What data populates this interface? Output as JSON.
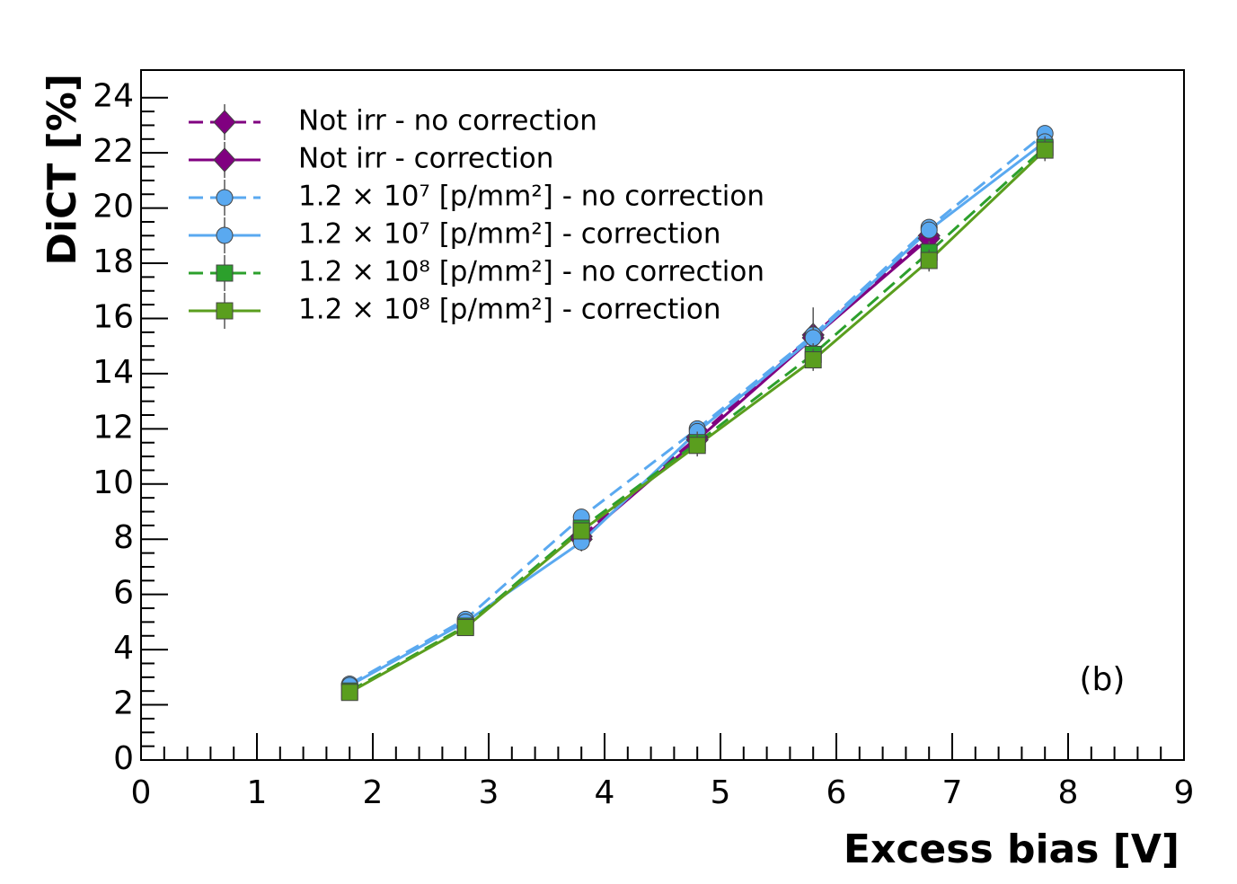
{
  "chart_data": {
    "type": "line",
    "xlabel": "Excess bias [V]",
    "ylabel": "DiCT [%]",
    "annotation": "(b)",
    "xlim": [
      0,
      9
    ],
    "ylim": [
      0,
      25
    ],
    "xticks": [
      0,
      1,
      2,
      3,
      4,
      5,
      6,
      7,
      8,
      9
    ],
    "yticks": [
      0,
      2,
      4,
      6,
      8,
      10,
      12,
      14,
      16,
      18,
      20,
      22,
      24
    ],
    "legend": "upper left",
    "series": [
      {
        "name": "Not irr - no correction",
        "color": "#800080",
        "marker": "diamond",
        "dash": true,
        "x": [
          3.8,
          4.8,
          5.8,
          6.8
        ],
        "values": [
          8.1,
          11.7,
          15.4,
          19.0
        ],
        "errors": [
          0.4,
          0.5,
          1.0,
          0.4
        ]
      },
      {
        "name": "Not irr - correction",
        "color": "#800080",
        "marker": "diamond",
        "dash": false,
        "x": [
          3.8,
          4.8,
          5.8,
          6.8
        ],
        "values": [
          8.0,
          11.6,
          15.3,
          18.9
        ],
        "errors": [
          0.4,
          0.5,
          0.5,
          0.4
        ]
      },
      {
        "name": "1.2 × 10⁷ [p/mm²] - no correction",
        "color": "#5aa9f0",
        "marker": "circle",
        "dash": true,
        "x": [
          1.8,
          2.8,
          3.8,
          4.8,
          5.8,
          6.8,
          7.8
        ],
        "values": [
          2.75,
          5.1,
          8.8,
          12.0,
          15.4,
          19.3,
          22.7
        ],
        "errors": [
          0.2,
          0.2,
          0.3,
          0.3,
          0.4,
          0.3,
          0.3
        ]
      },
      {
        "name": "1.2 × 10⁷ [p/mm²] - correction",
        "color": "#5aa9f0",
        "marker": "circle",
        "dash": false,
        "x": [
          1.8,
          2.8,
          3.8,
          4.8,
          5.8,
          6.8,
          7.8
        ],
        "values": [
          2.7,
          5.0,
          7.9,
          11.9,
          15.3,
          19.2,
          22.4
        ],
        "errors": [
          0.2,
          0.2,
          0.3,
          0.3,
          0.4,
          0.3,
          0.3
        ]
      },
      {
        "name": "1.2 × 10⁸ [p/mm²] - no correction",
        "color": "#2ca02c",
        "marker": "square",
        "dash": true,
        "x": [
          1.8,
          2.8,
          3.8,
          4.8,
          5.8,
          6.8,
          7.8
        ],
        "values": [
          2.5,
          4.85,
          8.4,
          11.5,
          14.7,
          18.4,
          22.2
        ],
        "errors": [
          0.2,
          0.2,
          0.3,
          0.4,
          0.4,
          0.4,
          0.4
        ]
      },
      {
        "name": "1.2 × 10⁸ [p/mm²] - correction",
        "color": "#5a9e1e",
        "marker": "square",
        "dash": false,
        "x": [
          1.8,
          2.8,
          3.8,
          4.8,
          5.8,
          6.8,
          7.8
        ],
        "values": [
          2.45,
          4.8,
          8.3,
          11.4,
          14.5,
          18.1,
          22.1
        ],
        "errors": [
          0.2,
          0.2,
          0.3,
          0.4,
          0.4,
          0.4,
          0.4
        ]
      }
    ]
  }
}
